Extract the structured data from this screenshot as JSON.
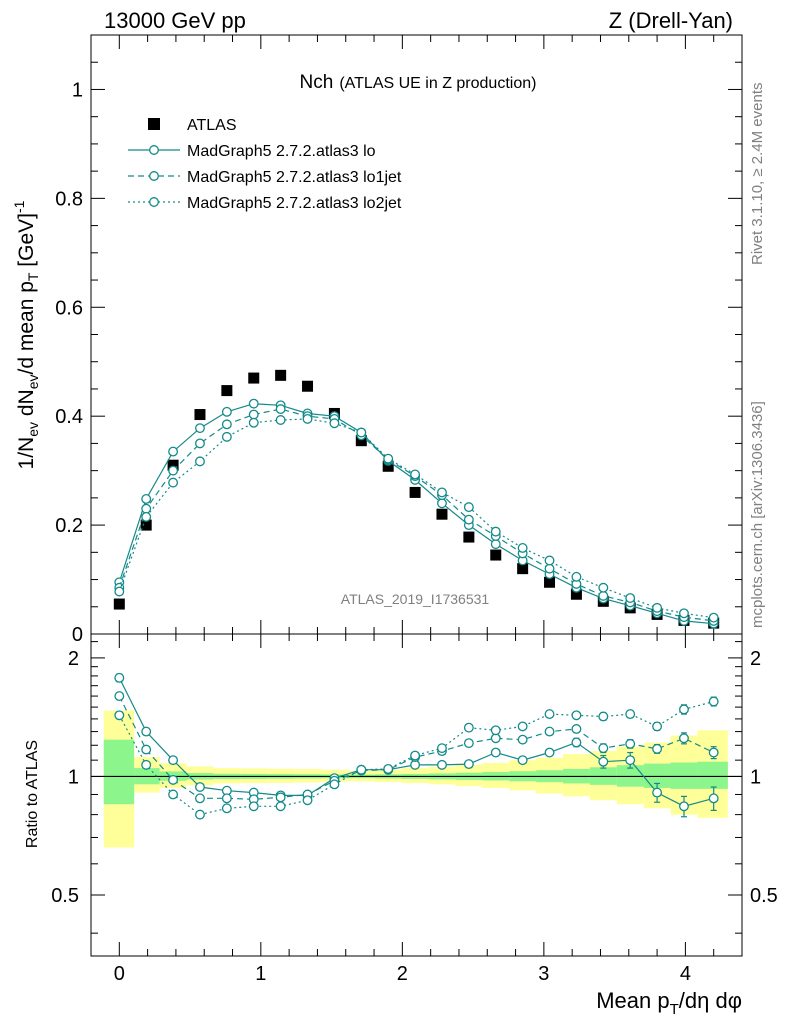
{
  "header": {
    "left": "13000 GeV pp",
    "right": "Z (Drell-Yan)"
  },
  "plot_title": {
    "main": "Nch",
    "sub": "(ATLAS UE in Z production)"
  },
  "side_labels": {
    "rivet": "Rivet 3.1.10, ≥ 2.4M events",
    "mcplots": "mcplots.cern.ch [arXiv:1306.3436]"
  },
  "watermark": "ATLAS_2019_I1736531",
  "colors": {
    "mc": "#138a8a",
    "band_inner": "#8cf58c",
    "band_outer": "#ffff99"
  },
  "chart_data": [
    {
      "type": "scatter",
      "panel": "main",
      "ylabel": "1/N_ev dN_ev/d mean p_T [GeV]^-1",
      "xlim": [
        -0.2,
        4.4
      ],
      "ylim": [
        0,
        1.1
      ],
      "yticks": [
        0,
        0.2,
        0.4,
        0.6,
        0.8,
        1
      ],
      "ytick_labels": [
        "0",
        "0.2",
        "0.4",
        "0.6",
        "0.8",
        "1"
      ],
      "legend_position": "top-left",
      "x": [
        0,
        0.19,
        0.38,
        0.57,
        0.76,
        0.95,
        1.14,
        1.33,
        1.52,
        1.71,
        1.9,
        2.09,
        2.28,
        2.47,
        2.66,
        2.85,
        3.04,
        3.23,
        3.42,
        3.61,
        3.8,
        3.99,
        4.2
      ],
      "series": [
        {
          "name": "ATLAS",
          "style": "square",
          "values": [
            0.055,
            0.2,
            0.31,
            0.403,
            0.447,
            0.47,
            0.475,
            0.455,
            0.405,
            0.355,
            0.308,
            0.26,
            0.22,
            0.178,
            0.145,
            0.12,
            0.095,
            0.073,
            0.06,
            0.048,
            0.036,
            0.025,
            0.02
          ]
        },
        {
          "name": "MadGraph5 2.7.2.atlas3 lo",
          "style": "solid",
          "values": [
            0.095,
            0.248,
            0.335,
            0.378,
            0.408,
            0.423,
            0.42,
            0.405,
            0.4,
            0.37,
            0.318,
            0.283,
            0.24,
            0.2,
            0.165,
            0.135,
            0.11,
            0.085,
            0.065,
            0.052,
            0.038,
            0.024,
            0.019
          ]
        },
        {
          "name": "MadGraph5 2.7.2.atlas3 lo1jet",
          "style": "dashed",
          "values": [
            0.085,
            0.23,
            0.3,
            0.35,
            0.385,
            0.403,
            0.413,
            0.4,
            0.395,
            0.365,
            0.32,
            0.29,
            0.255,
            0.21,
            0.18,
            0.148,
            0.12,
            0.092,
            0.07,
            0.058,
            0.042,
            0.031,
            0.024
          ]
        },
        {
          "name": "MadGraph5 2.7.2.atlas3 lo2jet",
          "style": "dotted",
          "values": [
            0.078,
            0.215,
            0.278,
            0.317,
            0.362,
            0.388,
            0.393,
            0.395,
            0.387,
            0.37,
            0.322,
            0.293,
            0.26,
            0.233,
            0.188,
            0.158,
            0.135,
            0.105,
            0.085,
            0.066,
            0.048,
            0.038,
            0.03
          ]
        }
      ]
    },
    {
      "type": "scatter",
      "panel": "ratio",
      "xlabel": "Mean p_T/dη dφ",
      "ylabel": "Ratio to ATLAS",
      "xlim": [
        -0.2,
        4.4
      ],
      "ylim": [
        0.35,
        2.3
      ],
      "xticks": [
        0,
        1,
        2,
        3,
        4
      ],
      "xtick_labels": [
        "0",
        "1",
        "2",
        "3",
        "4"
      ],
      "yticks": [
        0.5,
        1,
        2
      ],
      "ytick_labels": [
        "0.5",
        "1",
        "2"
      ],
      "x": [
        0,
        0.19,
        0.38,
        0.57,
        0.76,
        0.95,
        1.14,
        1.33,
        1.52,
        1.71,
        1.9,
        2.09,
        2.28,
        2.47,
        2.66,
        2.85,
        3.04,
        3.23,
        3.42,
        3.61,
        3.8,
        3.99,
        4.2
      ],
      "bands": {
        "edges": [
          -0.11,
          0.105,
          0.285,
          0.475,
          0.665,
          0.855,
          1.045,
          1.235,
          1.425,
          1.615,
          1.805,
          1.995,
          2.185,
          2.375,
          2.565,
          2.755,
          2.945,
          3.135,
          3.325,
          3.515,
          3.705,
          3.895,
          4.085,
          4.3
        ],
        "inner_lo": [
          0.85,
          0.955,
          0.975,
          0.982,
          0.985,
          0.986,
          0.987,
          0.988,
          0.989,
          0.99,
          0.988,
          0.986,
          0.983,
          0.98,
          0.977,
          0.972,
          0.967,
          0.96,
          0.952,
          0.942,
          0.935,
          0.93,
          0.93
        ],
        "inner_hi": [
          1.24,
          1.05,
          1.03,
          1.02,
          1.016,
          1.015,
          1.014,
          1.013,
          1.012,
          1.011,
          1.013,
          1.015,
          1.018,
          1.022,
          1.026,
          1.031,
          1.037,
          1.045,
          1.055,
          1.068,
          1.078,
          1.085,
          1.09
        ],
        "outer_lo": [
          0.66,
          0.91,
          0.935,
          0.95,
          0.96,
          0.962,
          0.963,
          0.965,
          0.97,
          0.972,
          0.968,
          0.962,
          0.955,
          0.945,
          0.935,
          0.922,
          0.905,
          0.89,
          0.87,
          0.85,
          0.83,
          0.8,
          0.785
        ],
        "outer_hi": [
          1.47,
          1.12,
          1.08,
          1.06,
          1.05,
          1.048,
          1.046,
          1.044,
          1.04,
          1.035,
          1.04,
          1.05,
          1.058,
          1.07,
          1.082,
          1.1,
          1.115,
          1.14,
          1.16,
          1.19,
          1.22,
          1.27,
          1.31
        ]
      },
      "series": [
        {
          "name": "MadGraph5 2.7.2.atlas3 lo",
          "style": "solid",
          "values": [
            1.78,
            1.3,
            1.1,
            0.94,
            0.92,
            0.91,
            0.895,
            0.895,
            0.99,
            1.04,
            1.04,
            1.07,
            1.07,
            1.075,
            1.15,
            1.1,
            1.15,
            1.22,
            1.09,
            1.1,
            0.91,
            0.84,
            0.88
          ],
          "errors": [
            0.04,
            0.02,
            0.01,
            0.01,
            0.01,
            0.01,
            0.01,
            0.01,
            0.01,
            0.01,
            0.01,
            0.01,
            0.01,
            0.01,
            0.02,
            0.02,
            0.02,
            0.03,
            0.04,
            0.05,
            0.05,
            0.05,
            0.06
          ]
        },
        {
          "name": "MadGraph5 2.7.2.atlas3 lo1jet",
          "style": "dashed",
          "values": [
            1.6,
            1.17,
            0.98,
            0.88,
            0.88,
            0.875,
            0.885,
            0.9,
            0.975,
            1.035,
            1.04,
            1.12,
            1.16,
            1.215,
            1.25,
            1.24,
            1.3,
            1.32,
            1.18,
            1.21,
            1.175,
            1.25,
            1.15
          ],
          "errors": [
            0.03,
            0.02,
            0.01,
            0.01,
            0.01,
            0.01,
            0.01,
            0.01,
            0.01,
            0.01,
            0.01,
            0.01,
            0.01,
            0.01,
            0.02,
            0.02,
            0.02,
            0.02,
            0.03,
            0.03,
            0.03,
            0.04,
            0.04
          ]
        },
        {
          "name": "MadGraph5 2.7.2.atlas3 lo2jet",
          "style": "dotted",
          "values": [
            1.43,
            1.07,
            0.9,
            0.8,
            0.83,
            0.84,
            0.84,
            0.87,
            0.955,
            1.04,
            1.045,
            1.13,
            1.18,
            1.33,
            1.31,
            1.34,
            1.44,
            1.43,
            1.42,
            1.44,
            1.34,
            1.48,
            1.55
          ],
          "errors": [
            0.03,
            0.02,
            0.01,
            0.01,
            0.01,
            0.01,
            0.01,
            0.01,
            0.01,
            0.01,
            0.01,
            0.01,
            0.01,
            0.01,
            0.02,
            0.02,
            0.02,
            0.02,
            0.03,
            0.03,
            0.03,
            0.04,
            0.04
          ]
        }
      ]
    }
  ]
}
